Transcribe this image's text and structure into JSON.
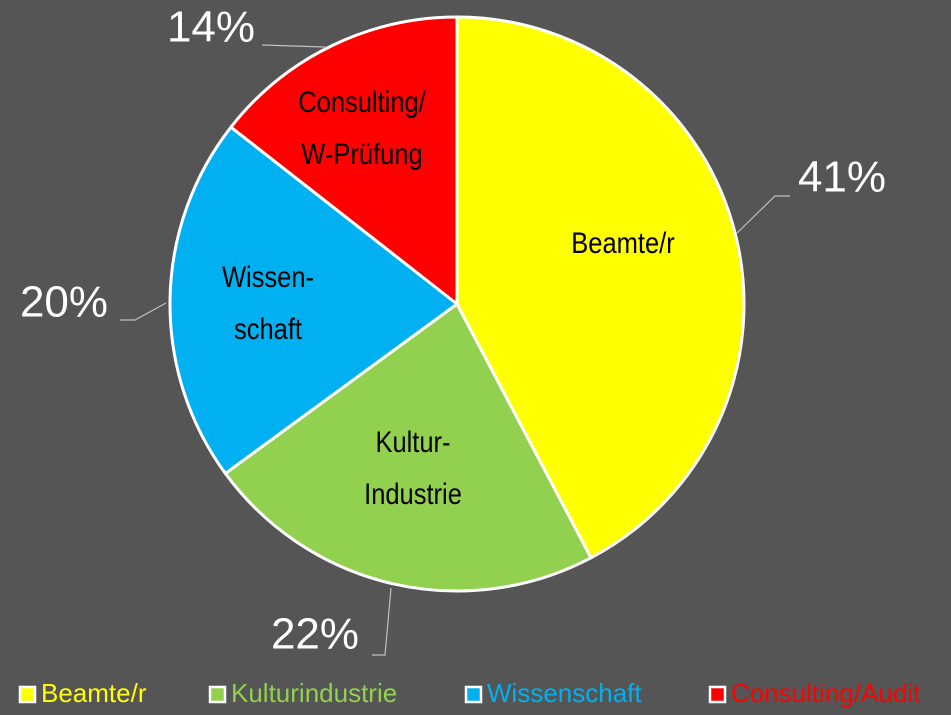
{
  "chart_data": {
    "type": "pie",
    "categories": [
      "Beamte/r",
      "Kulturindustrie",
      "Wissenschaft",
      "Consulting/Audit"
    ],
    "values": [
      41,
      22,
      20,
      14
    ],
    "value_labels": [
      "41%",
      "22%",
      "20%",
      "14%"
    ],
    "colors": [
      "#ffff00",
      "#92d050",
      "#00b0f0",
      "#ff0000"
    ],
    "slice_labels": [
      [
        "Beamte/r"
      ],
      [
        "Kultur-",
        "Industrie"
      ],
      [
        "Wissen-",
        "schaft"
      ],
      [
        "Consulting/",
        "W-Prüfung"
      ]
    ],
    "legend": "bottom"
  }
}
